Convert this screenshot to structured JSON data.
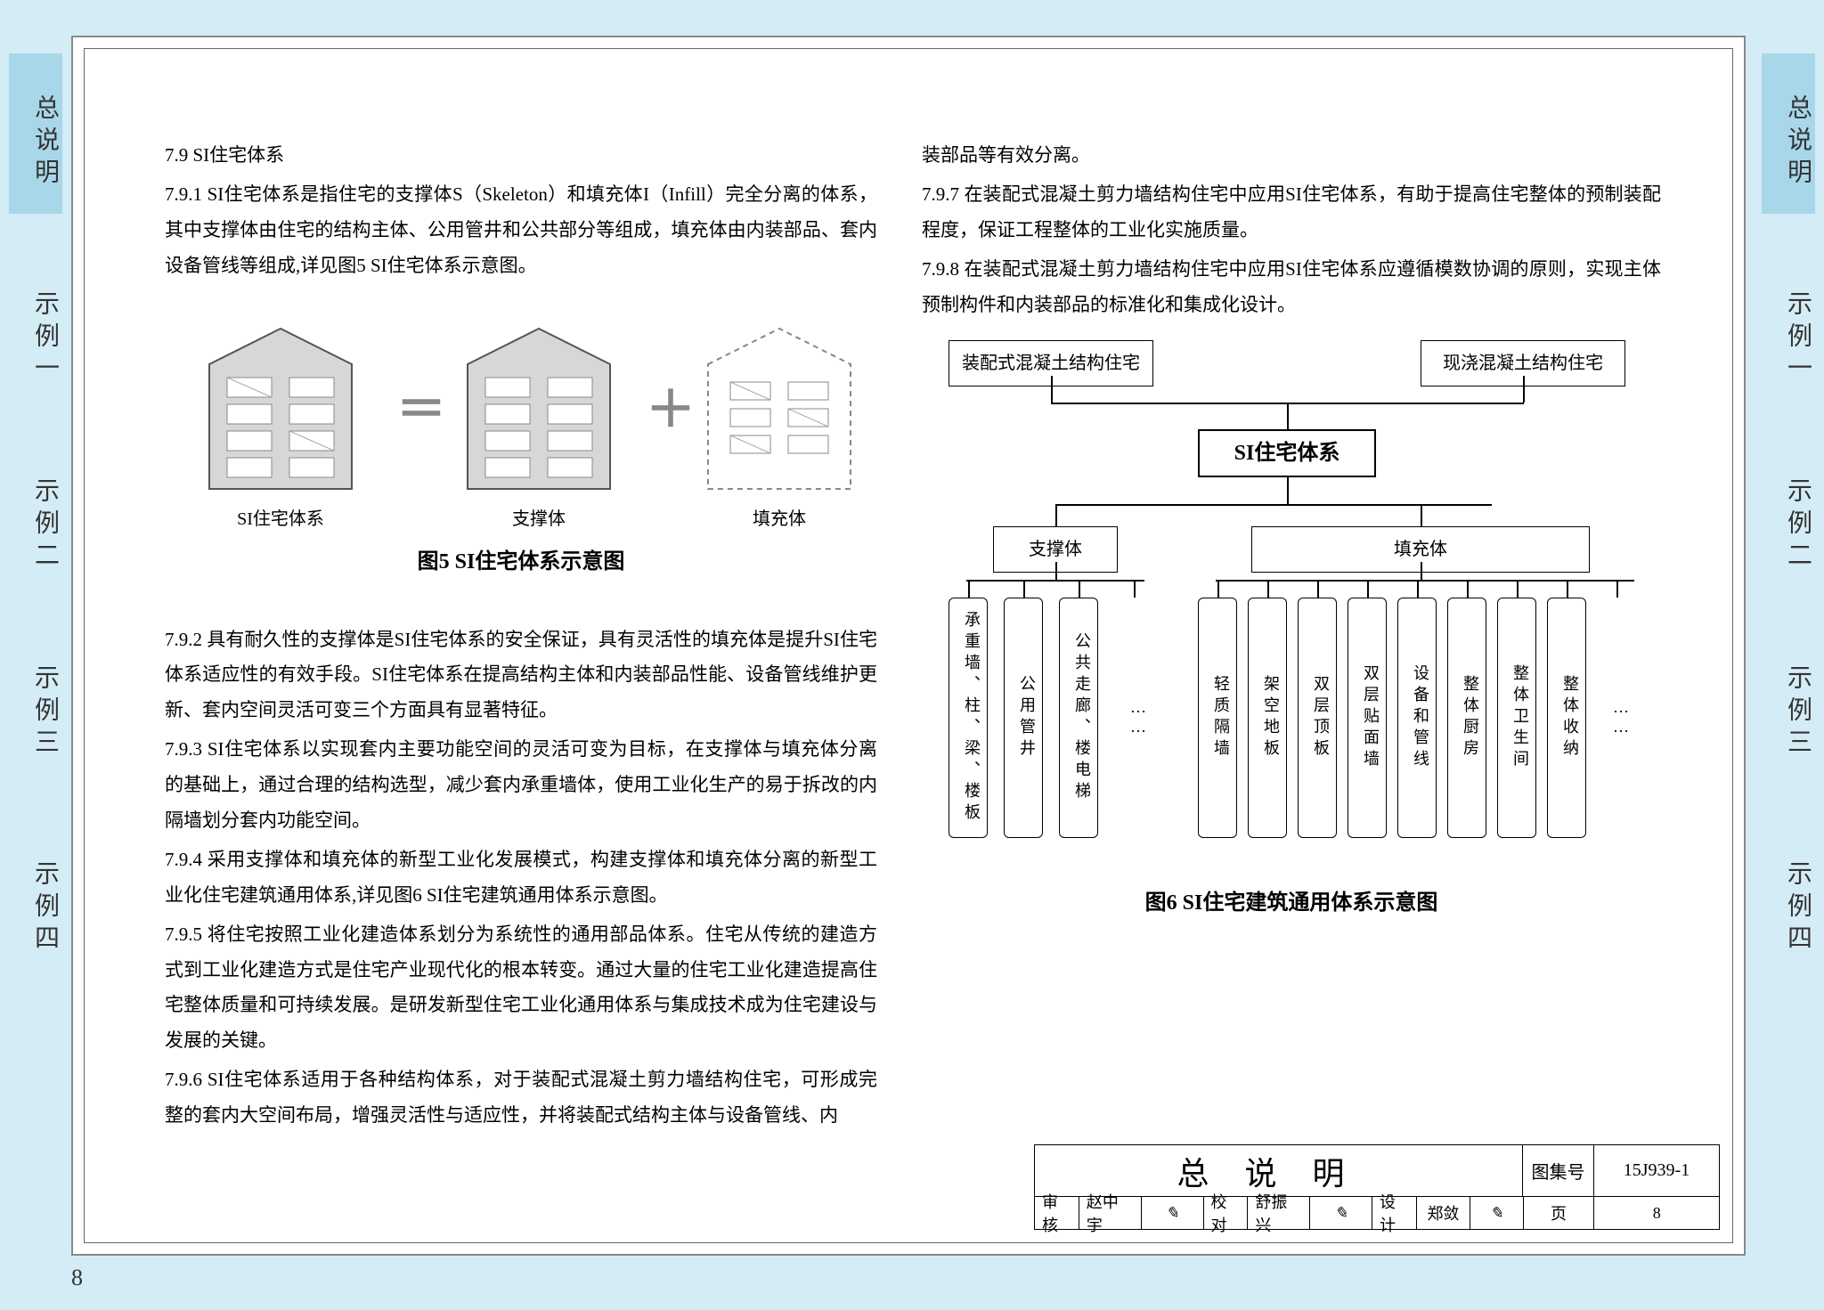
{
  "tabs": {
    "t0": "总说明",
    "t1": "示例一",
    "t2": "示例二",
    "t3": "示例三",
    "t4": "示例四"
  },
  "left": {
    "h": "7.9 SI住宅体系",
    "p1": "7.9.1 SI住宅体系是指住宅的支撑体S（Skeleton）和填充体I（Infill）完全分离的体系，其中支撑体由住宅的结构主体、公用管井和公共部分等组成，填充体由内装部品、套内设备管线等组成,详见图5 SI住宅体系示意图。",
    "fig5": {
      "cap1": "SI住宅体系",
      "cap2": "支撑体",
      "cap3": "填充体",
      "title": "图5 SI住宅体系示意图"
    },
    "p2": "7.9.2 具有耐久性的支撑体是SI住宅体系的安全保证，具有灵活性的填充体是提升SI住宅体系适应性的有效手段。SI住宅体系在提高结构主体和内装部品性能、设备管线维护更新、套内空间灵活可变三个方面具有显著特征。",
    "p3": "7.9.3 SI住宅体系以实现套内主要功能空间的灵活可变为目标，在支撑体与填充体分离的基础上，通过合理的结构选型，减少套内承重墙体，使用工业化生产的易于拆改的内隔墙划分套内功能空间。",
    "p4": "7.9.4 采用支撑体和填充体的新型工业化发展模式，构建支撑体和填充体分离的新型工业化住宅建筑通用体系,详见图6 SI住宅建筑通用体系示意图。",
    "p5": "7.9.5 将住宅按照工业化建造体系划分为系统性的通用部品体系。住宅从传统的建造方式到工业化建造方式是住宅产业现代化的根本转变。通过大量的住宅工业化建造提高住宅整体质量和可持续发展。是研发新型住宅工业化通用体系与集成技术成为住宅建设与发展的关键。",
    "p6": "7.9.6 SI住宅体系适用于各种结构体系，对于装配式混凝土剪力墙结构住宅，可形成完整的套内大空间布局，增强灵活性与适应性，并将装配式结构主体与设备管线、内"
  },
  "right": {
    "p0": "装部品等有效分离。",
    "p1": "7.9.7 在装配式混凝土剪力墙结构住宅中应用SI住宅体系，有助于提高住宅整体的预制装配程度，保证工程整体的工业化实施质量。",
    "p2": "7.9.8 在装配式混凝土剪力墙结构住宅中应用SI住宅体系应遵循模数协调的原则，实现主体预制构件和内装部品的标准化和集成化设计。",
    "fig6": {
      "top1": "装配式混凝土结构住宅",
      "top2": "现浇混凝土结构住宅",
      "mid": "SI住宅体系",
      "b1": "支撑体",
      "b2": "填充体",
      "leaves1": [
        "承重墙、柱、梁、楼板",
        "公用管井",
        "公共走廊、楼电梯",
        "……"
      ],
      "leaves2": [
        "轻质隔墙",
        "架空地板",
        "双层顶板",
        "双层贴面墙",
        "设备和管线",
        "整体厨房",
        "整体卫生间",
        "整体收纳",
        "……"
      ],
      "title": "图6 SI住宅建筑通用体系示意图"
    }
  },
  "titleblock": {
    "title": "总说明",
    "set_label": "图集号",
    "set_no": "15J939-1",
    "r2": {
      "c1l": "审核",
      "c1v": "赵中宇",
      "c2l": "校对",
      "c2v": "舒振兴",
      "c3l": "设计",
      "c3v": "郑敛",
      "pg_l": "页",
      "pg_v": "8"
    }
  },
  "page_number": "8",
  "colors": {
    "bg": "#d4ecf5",
    "tab_active": "#a8d7ea",
    "border": "#666666",
    "house_fill": "#d7d7d7"
  }
}
